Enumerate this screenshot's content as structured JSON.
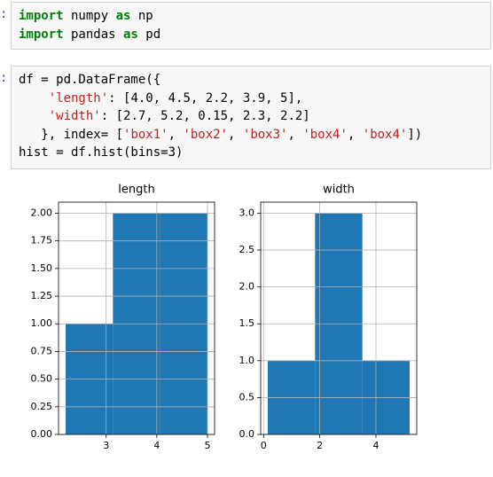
{
  "cells": [
    {
      "prompt": ":",
      "lines": [
        [
          {
            "text": "import",
            "color": "#008000",
            "bold": true
          },
          {
            "text": " numpy "
          },
          {
            "text": "as",
            "color": "#008000",
            "bold": true
          },
          {
            "text": " np"
          }
        ],
        [
          {
            "text": "import",
            "color": "#008000",
            "bold": true
          },
          {
            "text": " pandas "
          },
          {
            "text": "as",
            "color": "#008000",
            "bold": true
          },
          {
            "text": " pd"
          }
        ]
      ]
    },
    {
      "prompt": ":",
      "lines": [
        [
          {
            "text": "df = pd.DataFrame({"
          }
        ],
        [
          {
            "text": "    "
          },
          {
            "text": "'length'",
            "color": "#ba2121"
          },
          {
            "text": ": [4.0, 4.5, 2.2, 3.9, 5],"
          }
        ],
        [
          {
            "text": "    "
          },
          {
            "text": "'width'",
            "color": "#ba2121"
          },
          {
            "text": ": [2.7, 5.2, 0.15, 2.3, 2.2]"
          }
        ],
        [
          {
            "text": "   }, index= ["
          },
          {
            "text": "'box1'",
            "color": "#ba2121"
          },
          {
            "text": ", "
          },
          {
            "text": "'box2'",
            "color": "#ba2121"
          },
          {
            "text": ", "
          },
          {
            "text": "'box3'",
            "color": "#ba2121"
          },
          {
            "text": ", "
          },
          {
            "text": "'box4'",
            "color": "#ba2121"
          },
          {
            "text": ", "
          },
          {
            "text": "'box4'",
            "color": "#ba2121"
          },
          {
            "text": "])"
          }
        ],
        [
          {
            "text": "hist = df.hist(bins=3)"
          }
        ]
      ]
    }
  ],
  "chart_data": [
    {
      "type": "histogram",
      "title": "length",
      "bins": [
        2.2,
        3.1333,
        4.0667,
        5.0
      ],
      "values": [
        1,
        2,
        2
      ],
      "color": "#1f77b4",
      "xlim": [
        2.06,
        5.14
      ],
      "xticks": [
        3,
        4,
        5
      ],
      "ylim": [
        0,
        2.1
      ],
      "yticks": [
        {
          "value": 0,
          "label": "0.00"
        },
        {
          "value": 0.25,
          "label": "0.25"
        },
        {
          "value": 0.5,
          "label": "0.50"
        },
        {
          "value": 0.75,
          "label": "0.75"
        },
        {
          "value": 1,
          "label": "1.00"
        },
        {
          "value": 1.25,
          "label": "1.25"
        },
        {
          "value": 1.5,
          "label": "1.50"
        },
        {
          "value": 1.75,
          "label": "1.75"
        },
        {
          "value": 2,
          "label": "2.00"
        }
      ],
      "grid": true
    },
    {
      "type": "histogram",
      "title": "width",
      "bins": [
        0.15,
        1.8333,
        3.5167,
        5.2
      ],
      "values": [
        1,
        3,
        1
      ],
      "color": "#1f77b4",
      "xlim": [
        -0.1025,
        5.4525
      ],
      "xticks": [
        0,
        2,
        4
      ],
      "ylim": [
        0,
        3.15
      ],
      "yticks": [
        {
          "value": 0,
          "label": "0.0"
        },
        0.5,
        {
          "value": 1,
          "label": "1.0"
        },
        1.5,
        {
          "value": 2,
          "label": "2.0"
        },
        2.5,
        {
          "value": 3,
          "label": "3.0"
        }
      ],
      "grid": true
    }
  ]
}
